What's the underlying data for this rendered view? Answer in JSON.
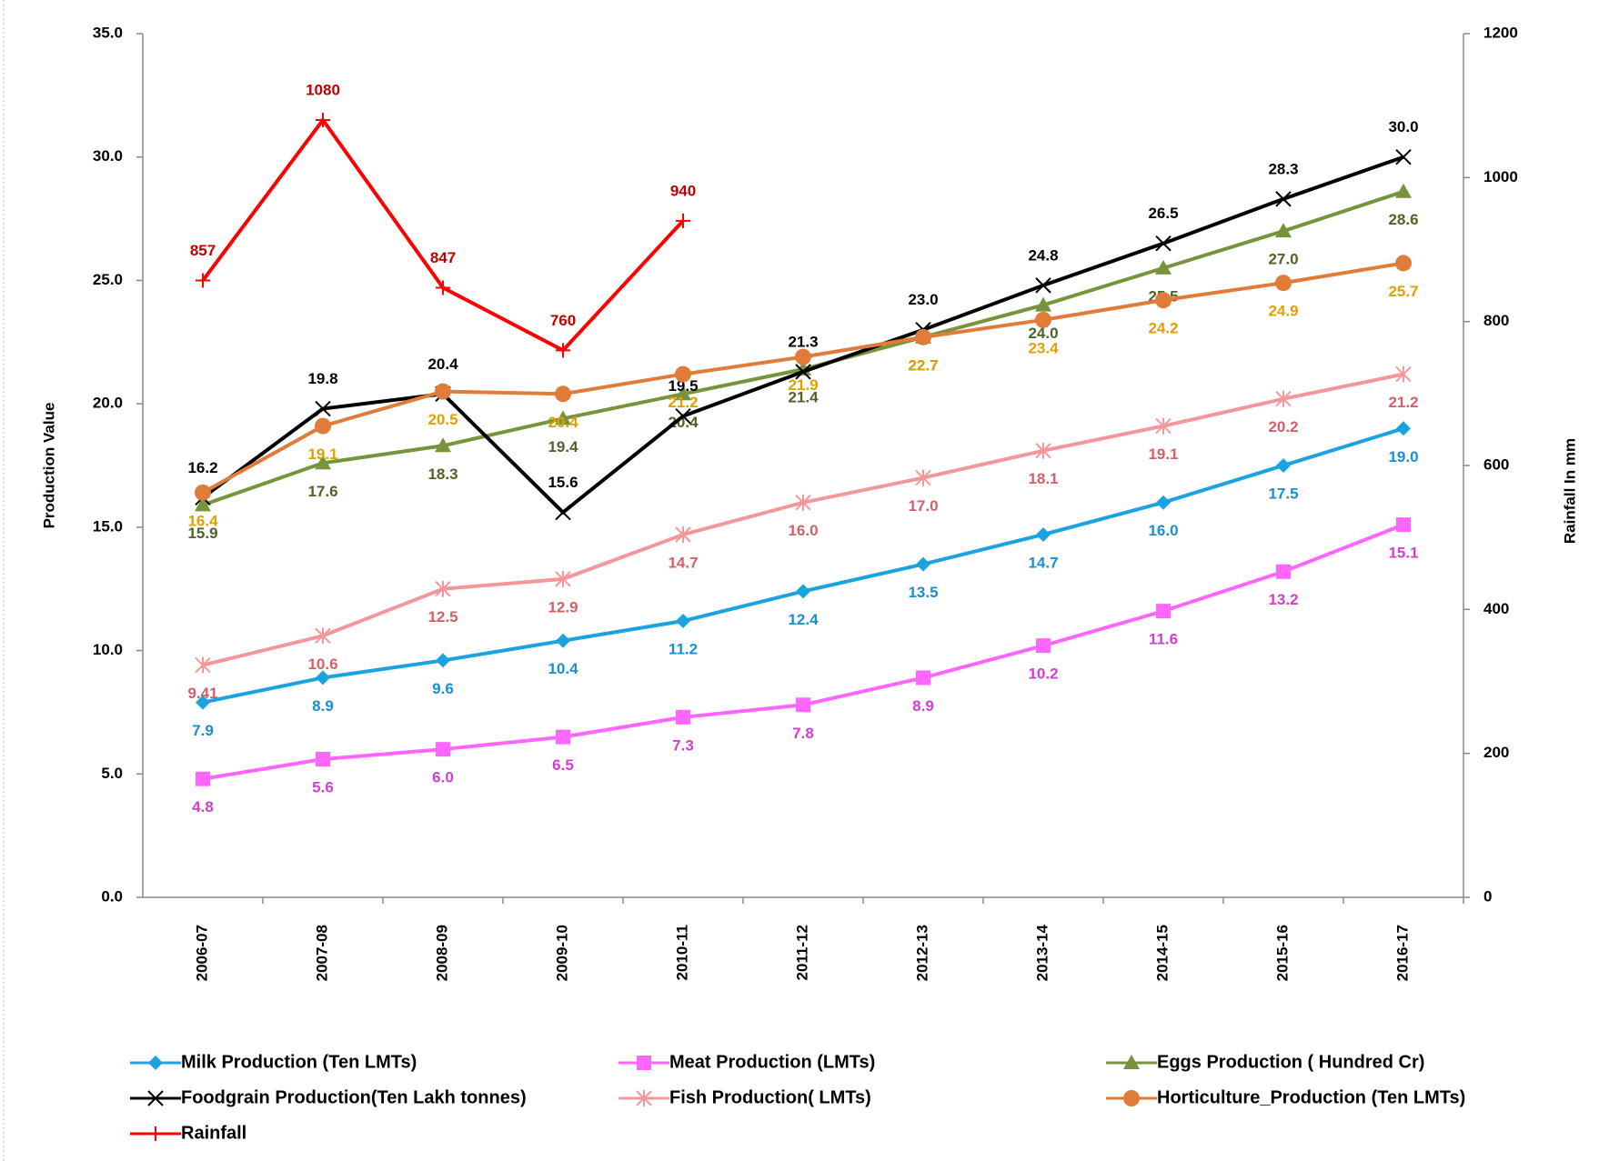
{
  "chart_data": {
    "type": "line",
    "categories": [
      "2006-07",
      "2007-08",
      "2008-09",
      "2009-10",
      "2010-11",
      "2011-12",
      "2012-13",
      "2013-14",
      "2014-15",
      "2015-16",
      "2016-17"
    ],
    "ylabel": "Production  Value",
    "y2label": "Rainfall  In mm",
    "ylim": [
      0,
      35
    ],
    "yticks": [
      {
        "value": 0,
        "label": "0.0"
      },
      {
        "value": 5,
        "label": "5.0"
      },
      {
        "value": 10,
        "label": "10.0"
      },
      {
        "value": 15,
        "label": "15.0"
      },
      {
        "value": 20,
        "label": "20.0"
      },
      {
        "value": 25,
        "label": "25.0"
      },
      {
        "value": 30,
        "label": "30.0"
      },
      {
        "value": 35,
        "label": "35.0"
      }
    ],
    "y2lim": [
      0,
      1200
    ],
    "y2ticks": [
      0,
      200,
      400,
      600,
      800,
      1000,
      1200
    ],
    "grid": false,
    "legend": "bottom",
    "series": [
      {
        "name": "Milk Production (Ten  LMTs)",
        "color": "#1aa3e0",
        "marker": "diamond",
        "values": [
          7.9,
          8.9,
          9.6,
          10.4,
          11.2,
          12.4,
          13.5,
          14.7,
          16.0,
          17.5,
          19.0
        ],
        "value_labels": [
          "7.9",
          "8.9",
          "9.6",
          "10.4",
          "11.2",
          "12.4",
          "13.5",
          "14.7",
          "16.0",
          "17.5",
          "19.0"
        ]
      },
      {
        "name": "Meat Production (LMTs)",
        "color": "#ff66ff",
        "marker": "square",
        "values": [
          4.8,
          5.6,
          6.0,
          6.5,
          7.3,
          7.8,
          8.9,
          10.2,
          11.6,
          13.2,
          15.1
        ],
        "value_labels": [
          "4.8",
          "5.6",
          "6.0",
          "6.5",
          "7.3",
          "7.8",
          "8.9",
          "10.2",
          "11.6",
          "13.2",
          "15.1"
        ]
      },
      {
        "name": "Eggs Production ( Hundred Cr)",
        "color": "#77933c",
        "marker": "triangle",
        "values": [
          15.9,
          17.6,
          18.3,
          19.4,
          20.4,
          21.4,
          22.7,
          24.0,
          25.5,
          27.0,
          28.6
        ],
        "value_labels": [
          "15.9",
          "17.6",
          "18.3",
          "19.4",
          "20.4",
          "21.4",
          "22.7",
          "24.0",
          "25.5",
          "27.0",
          "28.6"
        ]
      },
      {
        "name": "Foodgrain Production(Ten Lakh tonnes)",
        "color": "#000000",
        "marker": "x",
        "values": [
          16.2,
          19.8,
          20.4,
          15.6,
          19.5,
          21.3,
          23.0,
          24.8,
          26.5,
          28.3,
          30.0
        ],
        "value_labels": [
          "16.2",
          "19.8",
          "20.4",
          "15.6",
          "19.5",
          "21.3",
          "23.0",
          "24.8",
          "26.5",
          "28.3",
          "30.0"
        ]
      },
      {
        "name": "Fish Production( LMTs)",
        "color": "#f4979b",
        "marker": "star",
        "values": [
          9.41,
          10.6,
          12.5,
          12.9,
          14.7,
          16.0,
          17.0,
          18.1,
          19.1,
          20.2,
          21.2
        ],
        "value_labels": [
          "9.41",
          "10.6",
          "12.5",
          "12.9",
          "14.7",
          "16.0",
          "17.0",
          "18.1",
          "19.1",
          "20.2",
          "21.2"
        ]
      },
      {
        "name": "Horticulture_Production (Ten LMTs)",
        "color": "#e07b39",
        "marker": "circle",
        "values": [
          16.4,
          19.1,
          20.5,
          20.4,
          21.2,
          21.9,
          22.7,
          23.4,
          24.2,
          24.9,
          25.7
        ],
        "value_labels": [
          "16.4",
          "19.1",
          "20.5",
          "20.4",
          "21.2",
          "21.9",
          "22.7",
          "23.4",
          "24.2",
          "24.9",
          "25.7"
        ]
      },
      {
        "name": "Rainfall",
        "color": "#ff0000",
        "marker": "plus",
        "axis": "y2",
        "values": [
          857,
          1080,
          847,
          760,
          940,
          null,
          null,
          null,
          null,
          null,
          null
        ]
      }
    ]
  }
}
